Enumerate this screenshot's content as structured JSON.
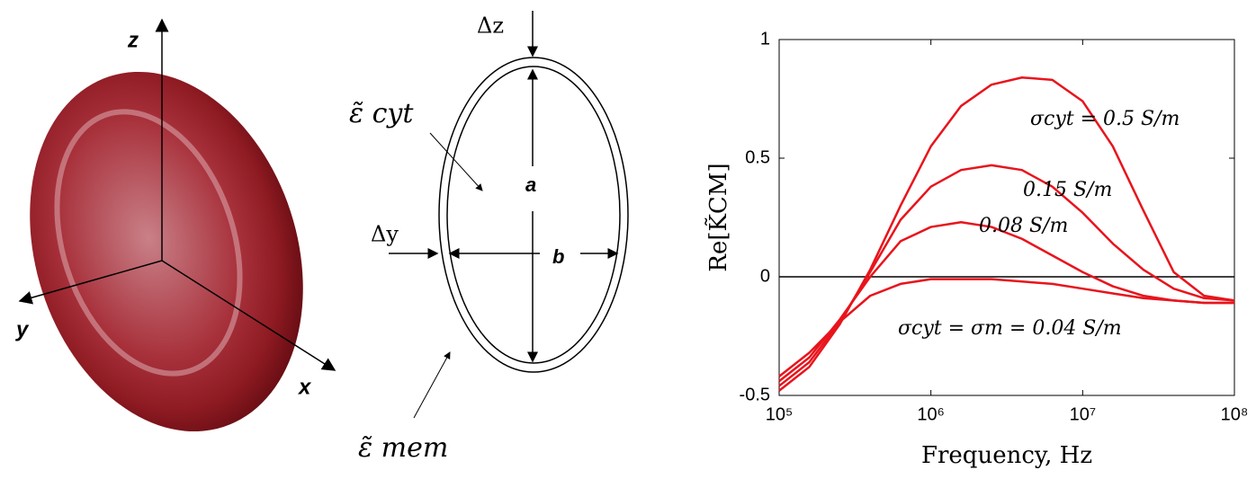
{
  "cell_panel": {
    "axis_labels": [
      "z",
      "y",
      "x"
    ]
  },
  "shell_panel": {
    "delta_z": "Δz",
    "eps_cyt": "ε̃ cyt",
    "a": "a",
    "delta_y": "Δy",
    "b": "b",
    "eps_mem": "ε̃ mem"
  },
  "chart_data": {
    "type": "line",
    "xlabel": "Frequency, Hz",
    "ylabel": "Re[K̃CM]",
    "x": [
      100000,
      158000,
      251000,
      398000,
      631000,
      1000000,
      1580000,
      2510000,
      3980000,
      6310000,
      10000000,
      15800000,
      25100000,
      39800000,
      63100000,
      100000000
    ],
    "xscale": "log",
    "xlim": [
      100000,
      100000000
    ],
    "xticks": [
      {
        "value": 100000,
        "label": "10⁵"
      },
      {
        "value": 1000000,
        "label": "10⁶"
      },
      {
        "value": 10000000,
        "label": "10⁷"
      },
      {
        "value": 100000000,
        "label": "10⁸"
      }
    ],
    "ylim": [
      -0.5,
      1
    ],
    "yticks": [
      -0.5,
      0,
      0.5,
      1
    ],
    "hline": 0,
    "series": [
      {
        "name": "σcyt = 0.5 S/m",
        "color": "#e8141c",
        "values": [
          -0.48,
          -0.38,
          -0.2,
          0.03,
          0.3,
          0.55,
          0.72,
          0.81,
          0.84,
          0.83,
          0.74,
          0.55,
          0.28,
          0.02,
          -0.08,
          -0.1
        ]
      },
      {
        "name": "0.15 S/m",
        "color": "#e8141c",
        "values": [
          -0.46,
          -0.36,
          -0.19,
          0.02,
          0.24,
          0.38,
          0.45,
          0.47,
          0.45,
          0.38,
          0.27,
          0.14,
          0.03,
          -0.05,
          -0.09,
          -0.1
        ]
      },
      {
        "name": "0.08 S/m",
        "color": "#e8141c",
        "values": [
          -0.44,
          -0.34,
          -0.18,
          0.0,
          0.15,
          0.21,
          0.23,
          0.21,
          0.16,
          0.09,
          0.02,
          -0.04,
          -0.08,
          -0.1,
          -0.11,
          -0.11
        ]
      },
      {
        "name": "σcyt = σm = 0.04 S/m",
        "color": "#e8141c",
        "values": [
          -0.42,
          -0.32,
          -0.19,
          -0.08,
          -0.03,
          -0.01,
          -0.01,
          -0.01,
          -0.02,
          -0.03,
          -0.05,
          -0.07,
          -0.09,
          -0.1,
          -0.11,
          -0.11
        ]
      }
    ]
  }
}
